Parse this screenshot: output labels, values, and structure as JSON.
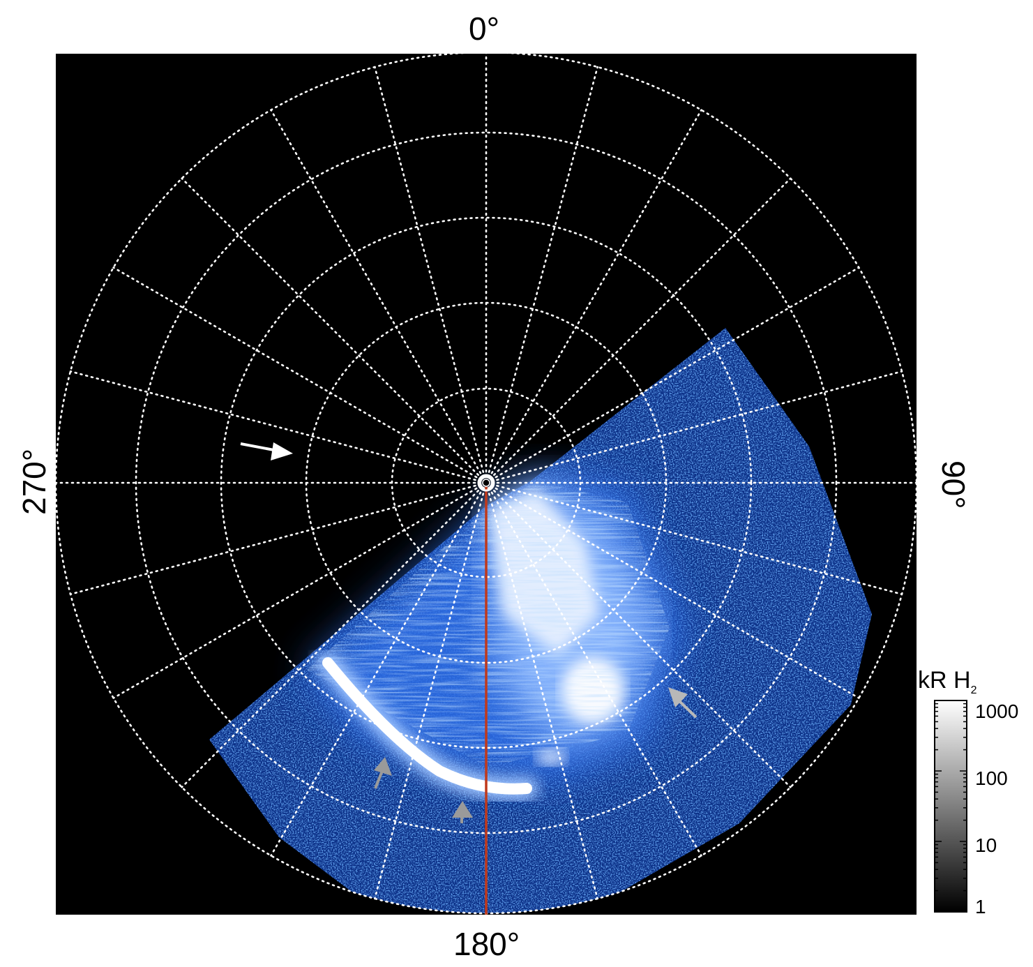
{
  "axis_labels": {
    "top": "0°",
    "right": "90°",
    "bottom": "180°",
    "left": "270°"
  },
  "colorbar": {
    "title": "kR H",
    "title_sub": "2",
    "ticks": [
      "1000",
      "100",
      "10",
      "1"
    ]
  },
  "colors": {
    "background": "#000000",
    "grid": "#ffffff",
    "meridian": "#c0391b",
    "aurora_low": "#1e5bd8",
    "aurora_high": "#ffffff",
    "arrow_white": "#ffffff",
    "arrow_grey": "#b4b4b4"
  }
}
